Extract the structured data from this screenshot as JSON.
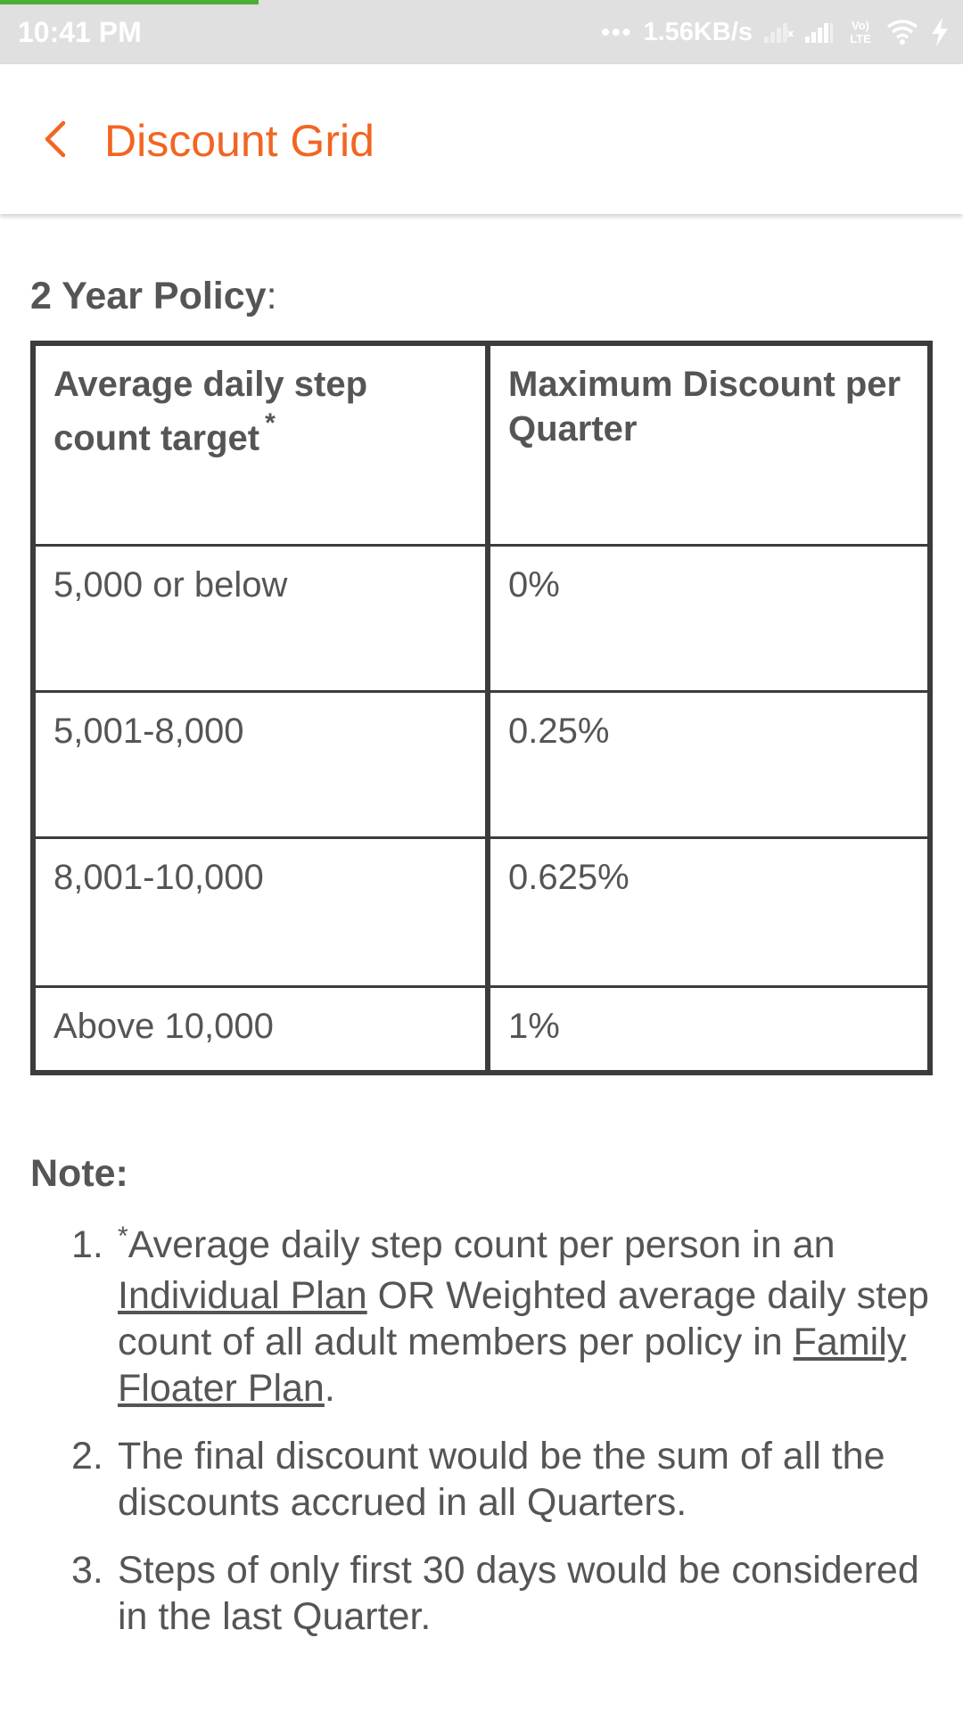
{
  "status_bar": {
    "time": "10:41 PM",
    "dots": "•••",
    "speed": "1.56KB/s",
    "volte": "Vo) LTE"
  },
  "app_bar": {
    "title": "Discount Grid",
    "accent_color": "#f26522"
  },
  "policy": {
    "heading_bold": "2 Year Policy",
    "heading_suffix": ":"
  },
  "grid": {
    "headers": {
      "col1_line1": "Average daily step",
      "col1_line2": "count target",
      "col1_star": "*",
      "col2": "Maximum Discount per Quarter"
    },
    "rows": [
      {
        "steps": "5,000 or below",
        "discount": "0%"
      },
      {
        "steps": "5,001-8,000",
        "discount": "0.25%"
      },
      {
        "steps": "8,001-10,000",
        "discount": "0.625%"
      },
      {
        "steps": "Above 10,000",
        "discount": "1%"
      }
    ]
  },
  "note": {
    "heading": "Note:",
    "items": [
      {
        "number": "1.",
        "star": "*",
        "text_a": "Average daily step count per person in an ",
        "link_a": "Individual Plan",
        "text_b": " OR Weighted average daily step count of all adult members per policy in ",
        "link_b": "Family Floater Plan",
        "text_c": "."
      },
      {
        "number": "2.",
        "text": "The final discount would be the sum of all the discounts accrued in all Quarters."
      },
      {
        "number": "3.",
        "text": "Steps of only first 30 days would be considered in the last Quarter."
      }
    ]
  }
}
